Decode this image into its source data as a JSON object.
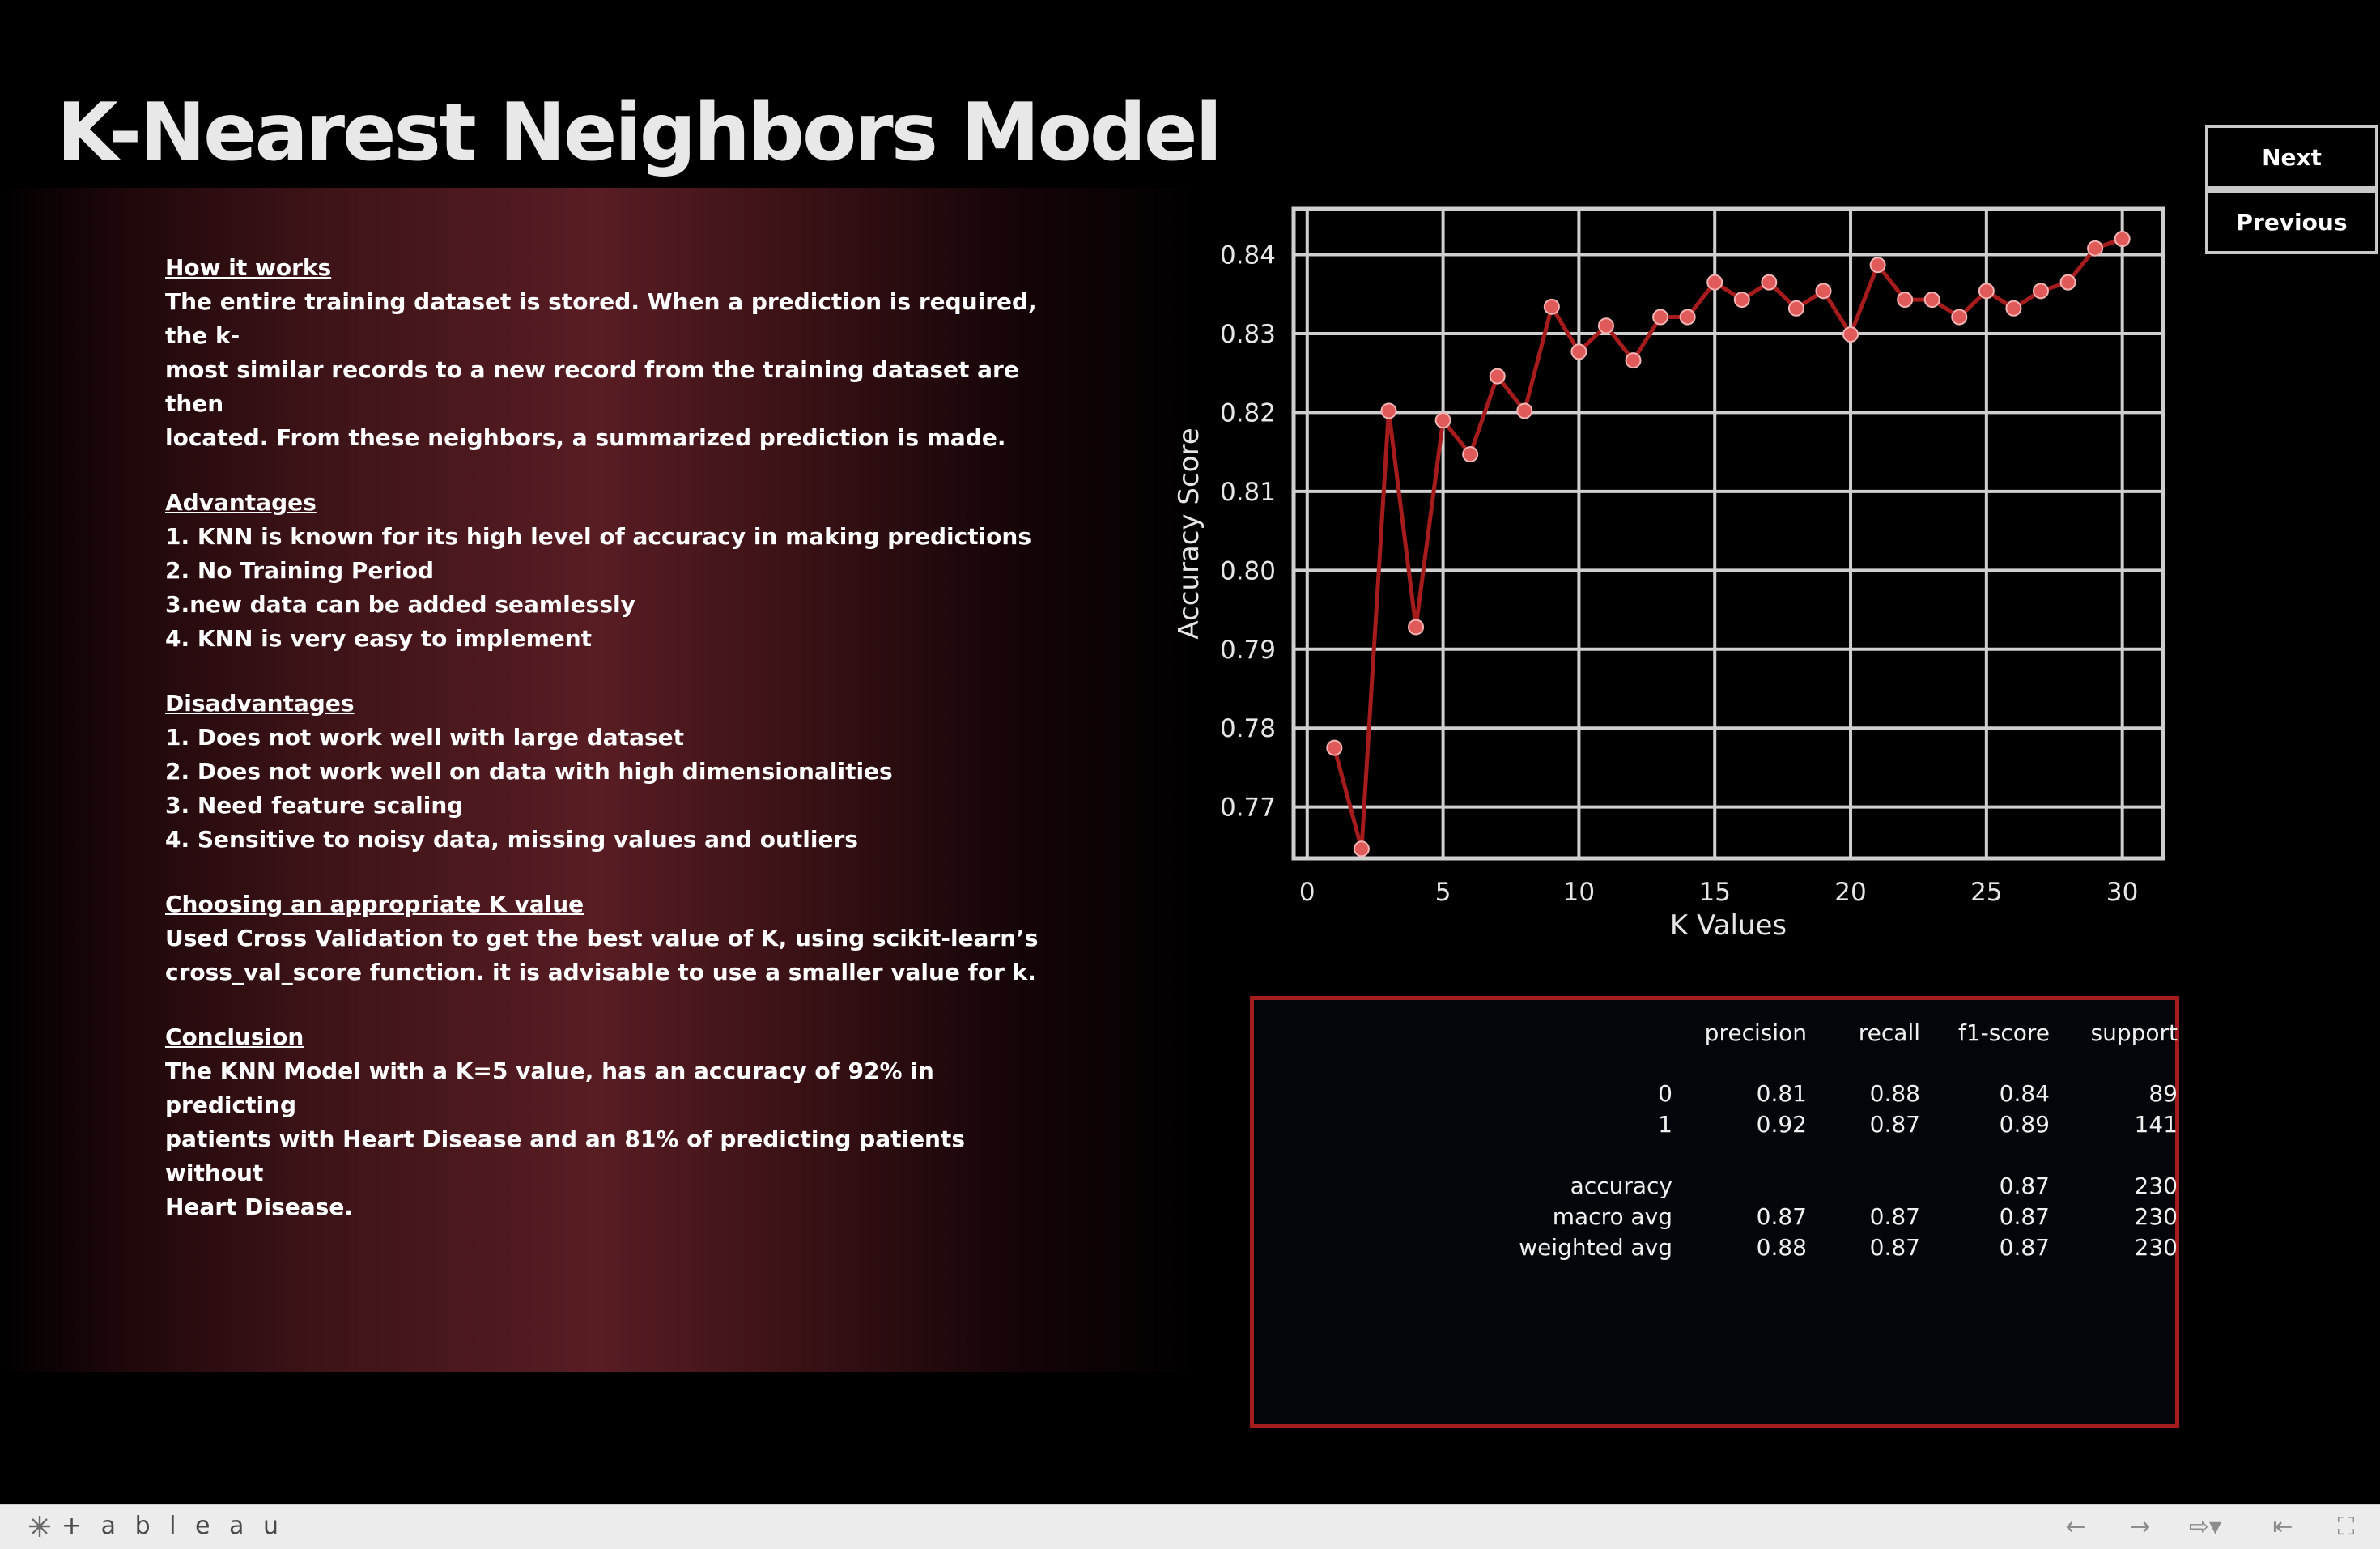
{
  "page": {
    "title": "K-Nearest Neighbors Model"
  },
  "nav": {
    "next_label": "Next",
    "previous_label": "Previous"
  },
  "info": {
    "how_it_works": {
      "heading": "How it works",
      "lines": [
        "The entire training dataset is stored. When a prediction is required, the k-",
        "most similar records to a new record from the training dataset are then",
        "located. From these neighbors, a summarized prediction is made."
      ]
    },
    "advantages": {
      "heading": "Advantages",
      "items": [
        "1. KNN is known for its high level of accuracy in making predictions",
        "2. No Training Period",
        "3.new data can be added seamlessly",
        "4. KNN is very easy to implement"
      ]
    },
    "disadvantages": {
      "heading": "Disadvantages",
      "items": [
        "1. Does not work well with large dataset",
        "2. Does not work well on data with high dimensionalities",
        "3. Need feature scaling",
        "4. Sensitive to noisy data, missing values and outliers"
      ]
    },
    "choosing_k": {
      "heading": "Choosing an appropriate K value",
      "lines": [
        "Used Cross Validation to get the best value of K, using scikit-learn’s",
        "cross_val_score function. it is advisable to use a smaller value for k."
      ]
    },
    "conclusion": {
      "heading": "Conclusion",
      "lines": [
        "The KNN Model with a K=5 value, has an accuracy of 92% in predicting",
        "patients with Heart Disease and an 81% of predicting patients without",
        "Heart Disease."
      ]
    }
  },
  "chart_data": {
    "type": "line",
    "xlabel": "K Values",
    "ylabel": "Accuracy Score",
    "xlim": [
      -0.5,
      31.5
    ],
    "ylim": [
      0.7635,
      0.8458
    ],
    "xticks": [
      0,
      5,
      10,
      15,
      20,
      25,
      30
    ],
    "xtick_labels": [
      "0",
      "5",
      "10",
      "15",
      "20",
      "25",
      "30"
    ],
    "yticks": [
      0.77,
      0.78,
      0.79,
      0.8,
      0.81,
      0.82,
      0.83,
      0.84
    ],
    "ytick_labels": [
      "0.77",
      "0.78",
      "0.79",
      "0.80",
      "0.81",
      "0.82",
      "0.83",
      "0.84"
    ],
    "grid": true,
    "legend": false,
    "x": [
      1,
      2,
      3,
      4,
      5,
      6,
      7,
      8,
      9,
      10,
      11,
      12,
      13,
      14,
      15,
      16,
      17,
      18,
      19,
      20,
      21,
      22,
      23,
      24,
      25,
      26,
      27,
      28,
      29,
      30
    ],
    "y": [
      0.7775,
      0.7647,
      0.8202,
      0.7928,
      0.819,
      0.8147,
      0.8246,
      0.8202,
      0.8334,
      0.8277,
      0.831,
      0.8266,
      0.8321,
      0.8321,
      0.8365,
      0.8343,
      0.8365,
      0.8332,
      0.8354,
      0.8299,
      0.8387,
      0.8343,
      0.8343,
      0.8321,
      0.8354,
      0.8332,
      0.8354,
      0.8365,
      0.8408,
      0.842
    ],
    "line_color": "#a61c1c",
    "marker_color": "#e05a5a",
    "background": "#000000",
    "axis_color": "#cfcfcf"
  },
  "report": {
    "headers": [
      "precision",
      "recall",
      "f1-score",
      "support"
    ],
    "class_rows": [
      {
        "label": "0",
        "precision": "0.81",
        "recall": "0.88",
        "f1": "0.84",
        "support": "89"
      },
      {
        "label": "1",
        "precision": "0.92",
        "recall": "0.87",
        "f1": "0.89",
        "support": "141"
      }
    ],
    "summary_rows": [
      {
        "label": "accuracy",
        "precision": "",
        "recall": "",
        "f1": "0.87",
        "support": "230"
      },
      {
        "label": "macro avg",
        "precision": "0.87",
        "recall": "0.87",
        "f1": "0.87",
        "support": "230"
      },
      {
        "label": "weighted avg",
        "precision": "0.88",
        "recall": "0.87",
        "f1": "0.87",
        "support": "230"
      }
    ],
    "border_color": "#a51c1c"
  },
  "toolbar": {
    "brand": "+ a b l e a u",
    "icons": [
      "undo-icon",
      "redo-icon",
      "revert-icon",
      "reset-icon",
      "fullscreen-icon"
    ]
  }
}
